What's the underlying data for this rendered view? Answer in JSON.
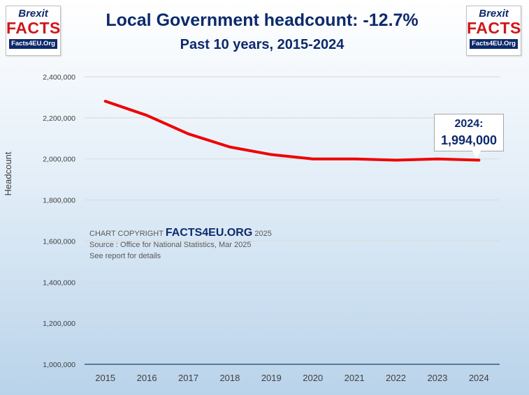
{
  "logo": {
    "brexit": "Brexit",
    "facts": "FACTS",
    "site": "Facts4EU.Org"
  },
  "header": {
    "title": "Local Government headcount: -12.7%",
    "subtitle": "Past 10 years, 2015-2024"
  },
  "copyright": {
    "prefix": "CHART COPYRIGHT",
    "brand": "FACTS4EU.ORG",
    "year": "2025",
    "source": "Source : Office for National Statistics, Mar 2025",
    "note": "See report for details"
  },
  "callout": {
    "label": "2024:",
    "value": "1,994,000"
  },
  "chart_data": {
    "type": "line",
    "title": "Local Government headcount: -12.7%",
    "subtitle": "Past 10 years, 2015-2024",
    "xlabel": "",
    "ylabel": "Headcount",
    "x": [
      2015,
      2016,
      2017,
      2018,
      2019,
      2020,
      2021,
      2022,
      2023,
      2024
    ],
    "series": [
      {
        "name": "Local Government headcount",
        "color": "#ee0000",
        "values": [
          2281000,
          2212000,
          2122000,
          2058000,
          2021000,
          2000000,
          2000000,
          1994000,
          2000000,
          1994000
        ]
      }
    ],
    "ylim": [
      1000000,
      2400000
    ],
    "yticks": [
      1000000,
      1200000,
      1400000,
      1600000,
      1800000,
      2000000,
      2200000,
      2400000
    ],
    "ytick_labels": [
      "1,000,000",
      "1,200,000",
      "1,400,000",
      "1,600,000",
      "1,800,000",
      "2,000,000",
      "2,200,000",
      "2,400,000"
    ],
    "grid": true,
    "legend": "none"
  }
}
